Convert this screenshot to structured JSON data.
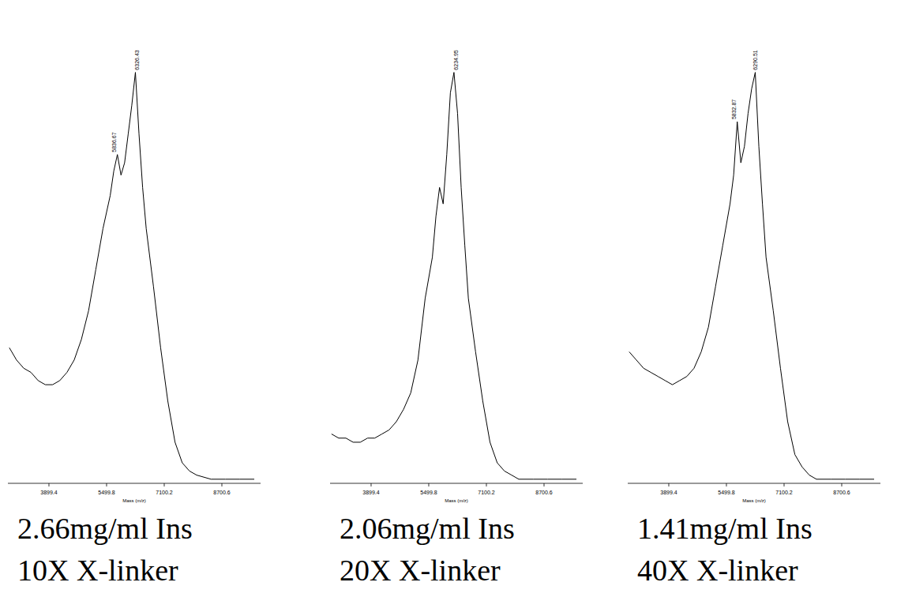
{
  "chart_data": [
    {
      "type": "line",
      "title": "2.66mg/ml Ins",
      "subtitle": "10X X-linker",
      "x_label": "Mass (m/z)",
      "x": [
        2800,
        3000,
        3200,
        3400,
        3600,
        3800,
        4000,
        4200,
        4400,
        4600,
        4800,
        5000,
        5200,
        5400,
        5600,
        5700,
        5800,
        5900,
        6000,
        6100,
        6200,
        6300,
        6400,
        6500,
        6600,
        6800,
        7000,
        7200,
        7400,
        7600,
        7800,
        8000,
        8400,
        8800,
        9200,
        9600
      ],
      "values": [
        33,
        30,
        28,
        27,
        25,
        24,
        24,
        25,
        27,
        30,
        35,
        42,
        52,
        62,
        70,
        76,
        80,
        75,
        78,
        85,
        92,
        100,
        85,
        72,
        62,
        48,
        33,
        20,
        10,
        5,
        3,
        2,
        1,
        1,
        1,
        1
      ],
      "xlim": [
        2760,
        9775
      ],
      "xticks": [
        3899.4,
        5499.8,
        7100.2,
        8700.6
      ],
      "ylim": [
        0,
        108
      ],
      "tick_labels": "x",
      "color": "#000000",
      "annotations": [
        {
          "x": 6326.43,
          "y": 100,
          "text": "6326.43"
        },
        {
          "x": 5836.67,
          "y": 80,
          "text": "5836.67"
        }
      ]
    },
    {
      "type": "line",
      "title": "2.06mg/ml Ins",
      "subtitle": "20X X-linker",
      "x_label": "Mass (m/z)",
      "x": [
        2800,
        3000,
        3200,
        3400,
        3600,
        3800,
        4000,
        4200,
        4400,
        4600,
        4800,
        5000,
        5200,
        5400,
        5600,
        5700,
        5800,
        5900,
        6000,
        6100,
        6200,
        6300,
        6400,
        6500,
        6600,
        6800,
        7000,
        7200,
        7400,
        7600,
        7800,
        8000,
        8400,
        8800,
        9200,
        9600
      ],
      "values": [
        12,
        11,
        11,
        10,
        10,
        11,
        11,
        12,
        13,
        15,
        18,
        22,
        30,
        45,
        55,
        65,
        72,
        68,
        80,
        95,
        100,
        90,
        72,
        58,
        45,
        32,
        20,
        10,
        5,
        3,
        2,
        1,
        1,
        1,
        1,
        1
      ],
      "xlim": [
        2760,
        9775
      ],
      "xticks": [
        3899.4,
        5499.8,
        7100.2,
        8700.6
      ],
      "ylim": [
        0,
        108
      ],
      "tick_labels": "x",
      "color": "#000000",
      "annotations": [
        {
          "x": 6234.95,
          "y": 100,
          "text": "6234.95"
        }
      ]
    },
    {
      "type": "line",
      "title": "1.41mg/ml Ins",
      "subtitle": "40X X-linker",
      "x_label": "Mass (m/z)",
      "x": [
        2800,
        3000,
        3200,
        3400,
        3600,
        3800,
        4000,
        4200,
        4400,
        4600,
        4800,
        5000,
        5200,
        5400,
        5600,
        5700,
        5800,
        5900,
        6000,
        6100,
        6200,
        6300,
        6400,
        6500,
        6600,
        6800,
        7000,
        7200,
        7400,
        7600,
        7800,
        8000,
        8400,
        8800,
        9200,
        9600
      ],
      "values": [
        32,
        30,
        28,
        27,
        26,
        25,
        24,
        25,
        26,
        28,
        32,
        38,
        48,
        58,
        68,
        75,
        88,
        78,
        82,
        90,
        96,
        100,
        82,
        68,
        55,
        42,
        28,
        15,
        7,
        4,
        2,
        1,
        1,
        1,
        1,
        1
      ],
      "xlim": [
        2760,
        9775
      ],
      "xticks": [
        3899.4,
        5499.8,
        7100.2,
        8700.6
      ],
      "ylim": [
        0,
        108
      ],
      "tick_labels": "x",
      "color": "#000000",
      "annotations": [
        {
          "x": 6290.51,
          "y": 100,
          "text": "6290.51"
        },
        {
          "x": 5832.87,
          "y": 88,
          "text": "5832.87"
        }
      ]
    }
  ]
}
